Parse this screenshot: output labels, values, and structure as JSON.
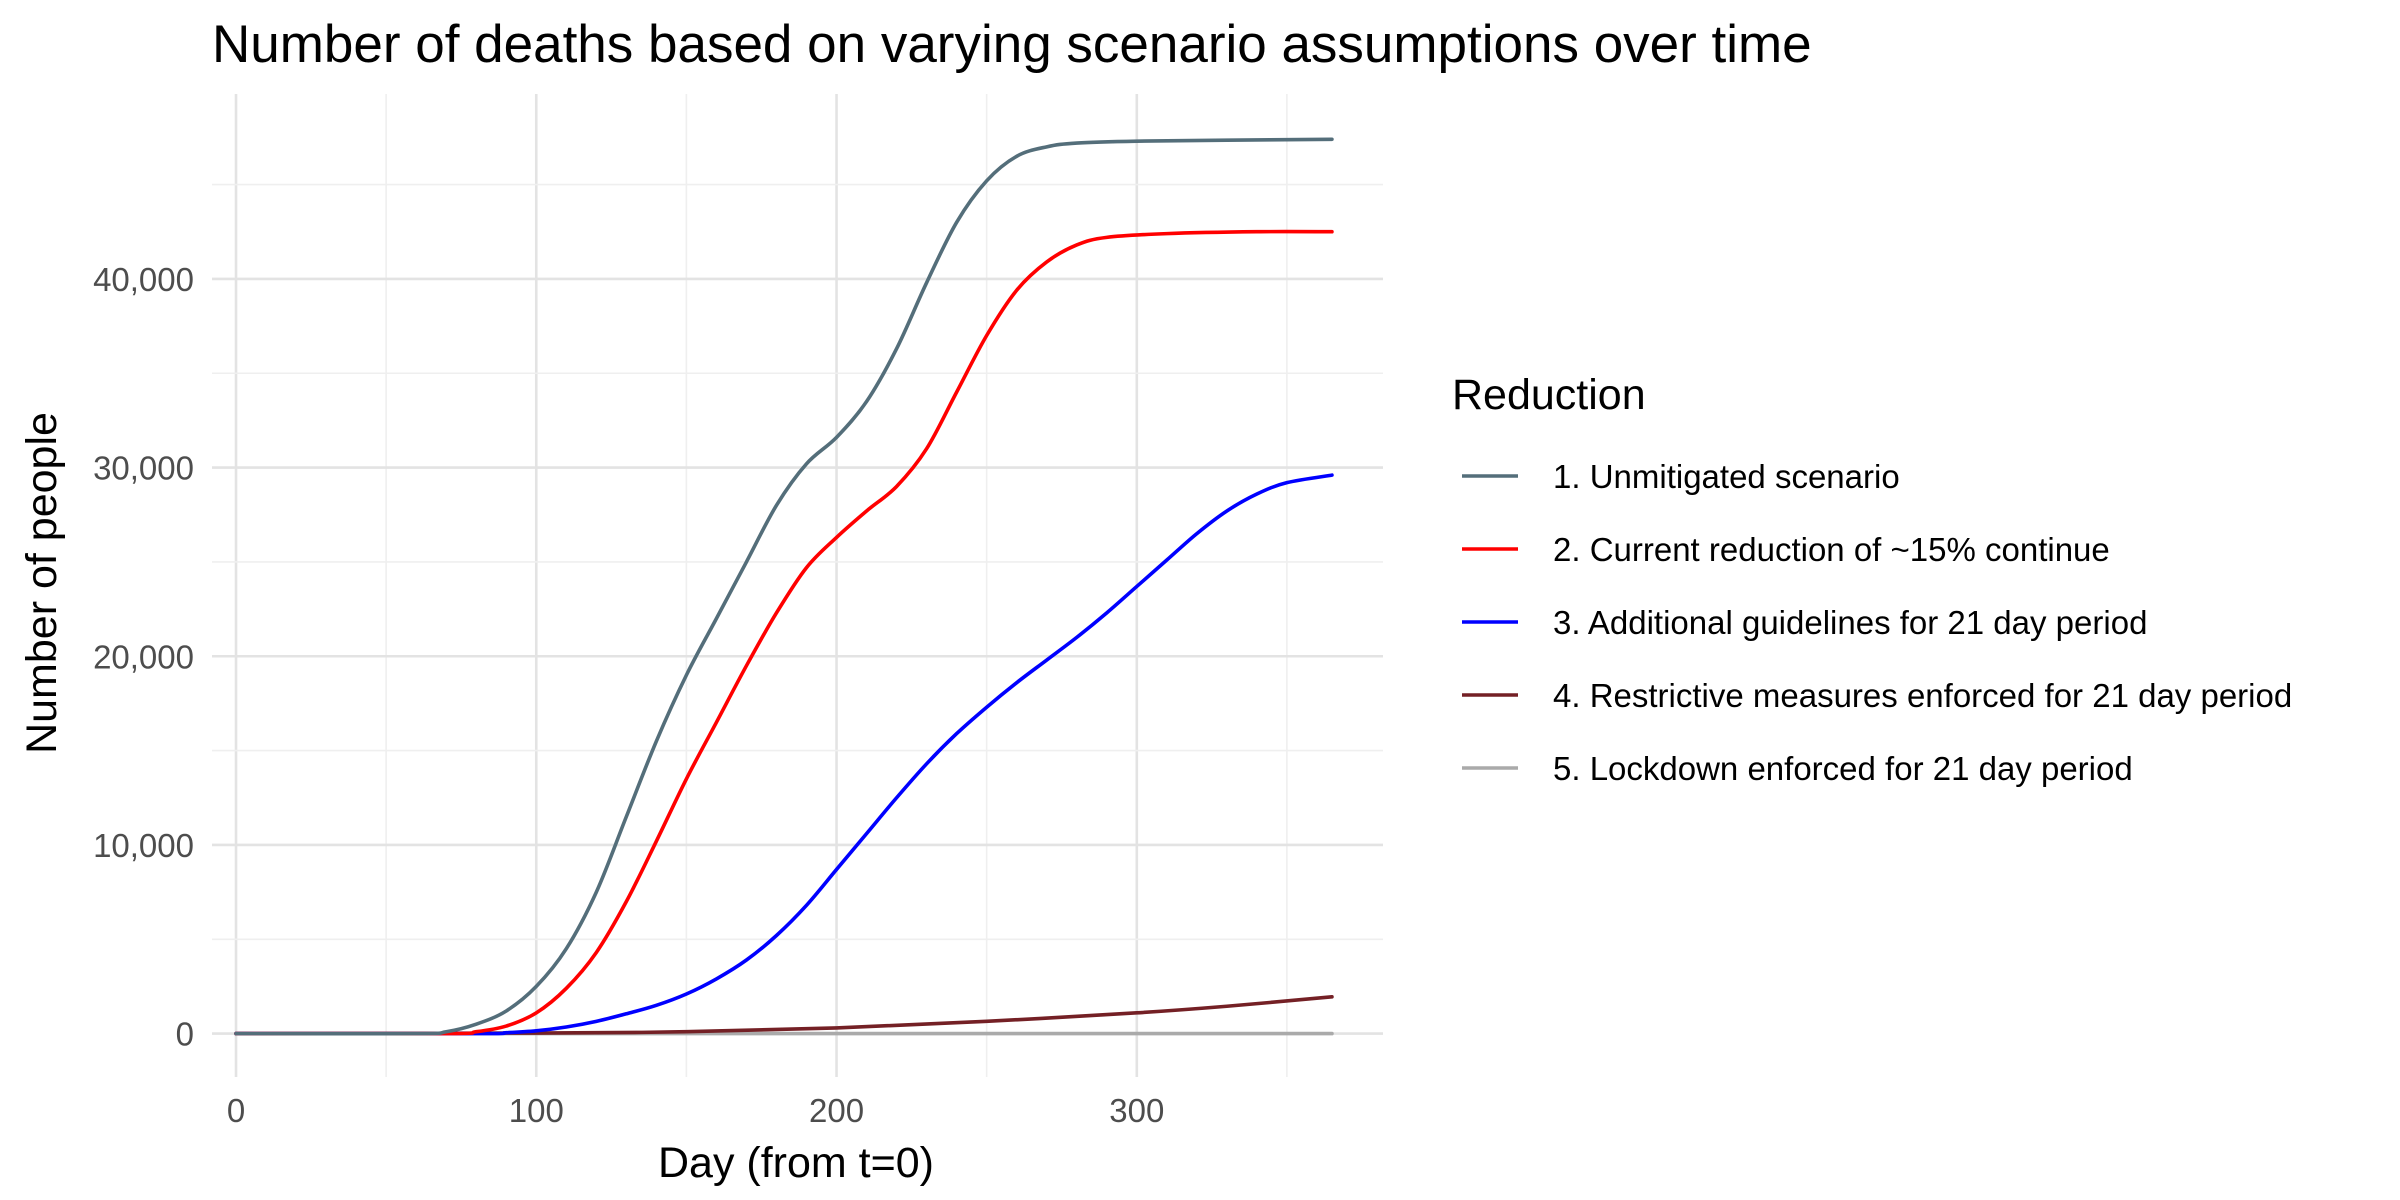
{
  "chart_data": {
    "type": "line",
    "title": "Number of deaths based on varying scenario assumptions over time",
    "xlabel": "Day (from t=0)",
    "ylabel": "Number of people",
    "xlim": [
      -8,
      382
    ],
    "ylim": [
      -2300,
      49800
    ],
    "x_ticks": [
      0,
      100,
      200,
      300
    ],
    "x_tick_labels": [
      "0",
      "100",
      "200",
      "300"
    ],
    "y_ticks": [
      0,
      10000,
      20000,
      30000,
      40000
    ],
    "y_tick_labels": [
      "0",
      "10,000",
      "20,000",
      "30,000",
      "40,000"
    ],
    "grid": true,
    "legend": {
      "title": "Reduction",
      "position": "right"
    },
    "series": [
      {
        "name": "1. Unmitigated scenario",
        "color": "#546e7a",
        "points": [
          [
            0,
            0
          ],
          [
            60,
            0
          ],
          [
            70,
            100
          ],
          [
            80,
            500
          ],
          [
            90,
            1200
          ],
          [
            100,
            2500
          ],
          [
            110,
            4500
          ],
          [
            120,
            7500
          ],
          [
            130,
            11500
          ],
          [
            140,
            15500
          ],
          [
            150,
            19000
          ],
          [
            160,
            22000
          ],
          [
            170,
            25000
          ],
          [
            180,
            28000
          ],
          [
            190,
            30200
          ],
          [
            200,
            31600
          ],
          [
            210,
            33500
          ],
          [
            220,
            36300
          ],
          [
            230,
            39800
          ],
          [
            240,
            43000
          ],
          [
            250,
            45200
          ],
          [
            260,
            46500
          ],
          [
            270,
            47000
          ],
          [
            280,
            47200
          ],
          [
            300,
            47300
          ],
          [
            330,
            47350
          ],
          [
            365,
            47400
          ]
        ]
      },
      {
        "name": "2. Current reduction of ~15% continue",
        "color": "#ff0000",
        "points": [
          [
            0,
            0
          ],
          [
            70,
            0
          ],
          [
            80,
            100
          ],
          [
            90,
            400
          ],
          [
            100,
            1100
          ],
          [
            110,
            2400
          ],
          [
            120,
            4300
          ],
          [
            130,
            7000
          ],
          [
            140,
            10200
          ],
          [
            150,
            13500
          ],
          [
            160,
            16500
          ],
          [
            170,
            19500
          ],
          [
            180,
            22300
          ],
          [
            190,
            24700
          ],
          [
            200,
            26300
          ],
          [
            210,
            27700
          ],
          [
            220,
            29000
          ],
          [
            230,
            31000
          ],
          [
            240,
            34000
          ],
          [
            250,
            37000
          ],
          [
            260,
            39400
          ],
          [
            270,
            40900
          ],
          [
            280,
            41800
          ],
          [
            290,
            42200
          ],
          [
            310,
            42400
          ],
          [
            340,
            42500
          ],
          [
            365,
            42500
          ]
        ]
      },
      {
        "name": "3. Additional guidelines for 21 day period",
        "color": "#0000ff",
        "points": [
          [
            0,
            0
          ],
          [
            80,
            0
          ],
          [
            90,
            50
          ],
          [
            100,
            150
          ],
          [
            110,
            350
          ],
          [
            120,
            650
          ],
          [
            130,
            1050
          ],
          [
            140,
            1500
          ],
          [
            150,
            2100
          ],
          [
            160,
            2900
          ],
          [
            170,
            3900
          ],
          [
            180,
            5200
          ],
          [
            190,
            6800
          ],
          [
            200,
            8700
          ],
          [
            210,
            10600
          ],
          [
            220,
            12500
          ],
          [
            230,
            14300
          ],
          [
            240,
            15900
          ],
          [
            250,
            17300
          ],
          [
            260,
            18600
          ],
          [
            270,
            19800
          ],
          [
            280,
            21000
          ],
          [
            290,
            22300
          ],
          [
            300,
            23700
          ],
          [
            310,
            25100
          ],
          [
            320,
            26500
          ],
          [
            330,
            27700
          ],
          [
            340,
            28600
          ],
          [
            350,
            29200
          ],
          [
            365,
            29600
          ]
        ]
      },
      {
        "name": "4. Restrictive measures enforced for 21 day period",
        "color": "#742025",
        "points": [
          [
            0,
            0
          ],
          [
            100,
            30
          ],
          [
            150,
            100
          ],
          [
            200,
            300
          ],
          [
            250,
            650
          ],
          [
            300,
            1100
          ],
          [
            330,
            1450
          ],
          [
            365,
            1950
          ]
        ]
      },
      {
        "name": "5. Lockdown enforced for 21 day period",
        "color": "#aaaaaa",
        "points": [
          [
            0,
            0
          ],
          [
            365,
            0
          ]
        ]
      }
    ]
  }
}
